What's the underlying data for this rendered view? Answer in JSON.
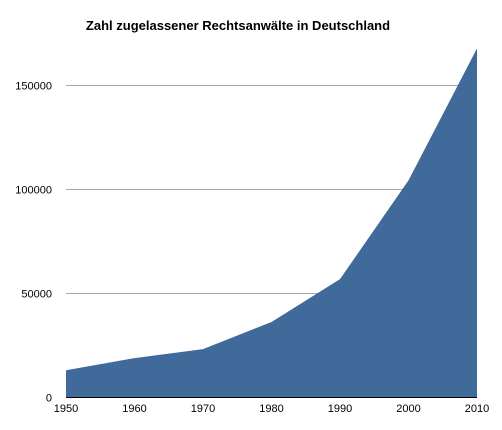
{
  "chart_data": {
    "type": "area",
    "title": "Zahl zugelassener Rechtsanwälte in Deutschland",
    "xlabel": "",
    "ylabel": "",
    "x": [
      1950,
      1960,
      1970,
      1980,
      1990,
      2000,
      2010
    ],
    "values": [
      12800,
      18700,
      23000,
      36000,
      56600,
      104000,
      167400
    ],
    "xlim": [
      1950,
      2010
    ],
    "ylim": [
      0,
      170000
    ],
    "y_ticks": [
      0,
      50000,
      100000,
      150000
    ],
    "y_tick_labels": [
      "0",
      "50000",
      "100000",
      "150000"
    ],
    "x_tick_labels": [
      "1950",
      "1960",
      "1970",
      "1980",
      "1990",
      "2000",
      "2010"
    ],
    "grid": true,
    "legend": "none",
    "colors": {
      "fill": "#3f6a9a",
      "grid": "#a8a8a8"
    }
  }
}
